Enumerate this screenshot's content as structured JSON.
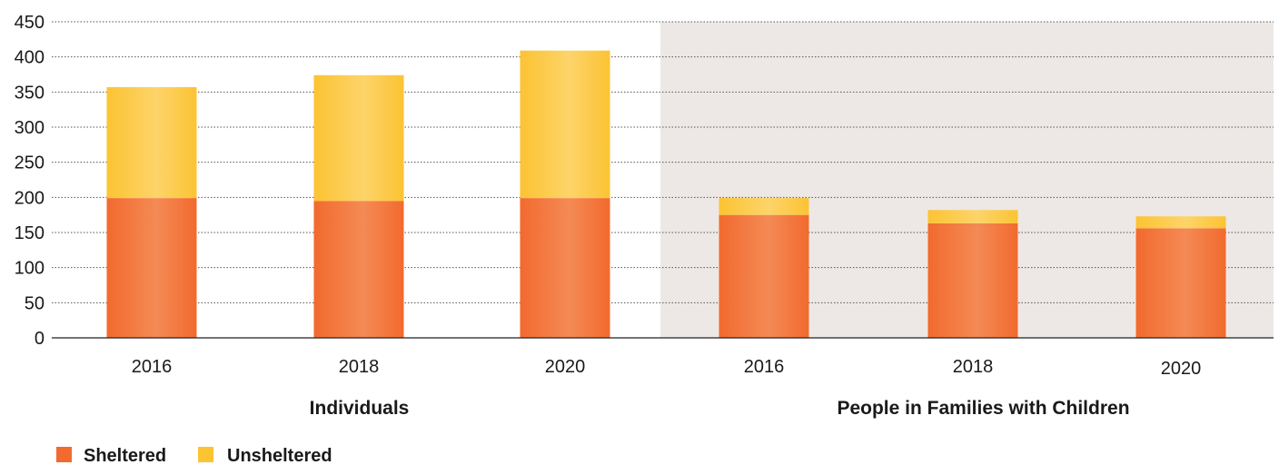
{
  "chart_data": {
    "type": "bar",
    "stacked": true,
    "groups": [
      {
        "label": "Individuals",
        "categories": [
          "2016",
          "2018",
          "2020"
        ],
        "shaded": false
      },
      {
        "label": "People in Families with Children",
        "categories": [
          "2016",
          "2018",
          "2020"
        ],
        "shaded": true
      }
    ],
    "series": [
      {
        "name": "Sheltered",
        "color": "#f26a2e",
        "values": [
          199,
          195,
          199,
          175,
          163,
          156
        ]
      },
      {
        "name": "Unsheltered",
        "color": "#fcc333",
        "values": [
          158,
          179,
          210,
          24,
          19,
          17
        ]
      }
    ],
    "ylim": [
      0,
      450
    ],
    "yticks": [
      "0",
      "50",
      "100",
      "150",
      "200",
      "250",
      "300",
      "350",
      "400",
      "450"
    ],
    "grid": true,
    "grid_style": "dotted",
    "legend_position": "bottom-left",
    "shaded_region_color": "#ede8e5",
    "title": "",
    "xlabel": "",
    "ylabel": ""
  }
}
